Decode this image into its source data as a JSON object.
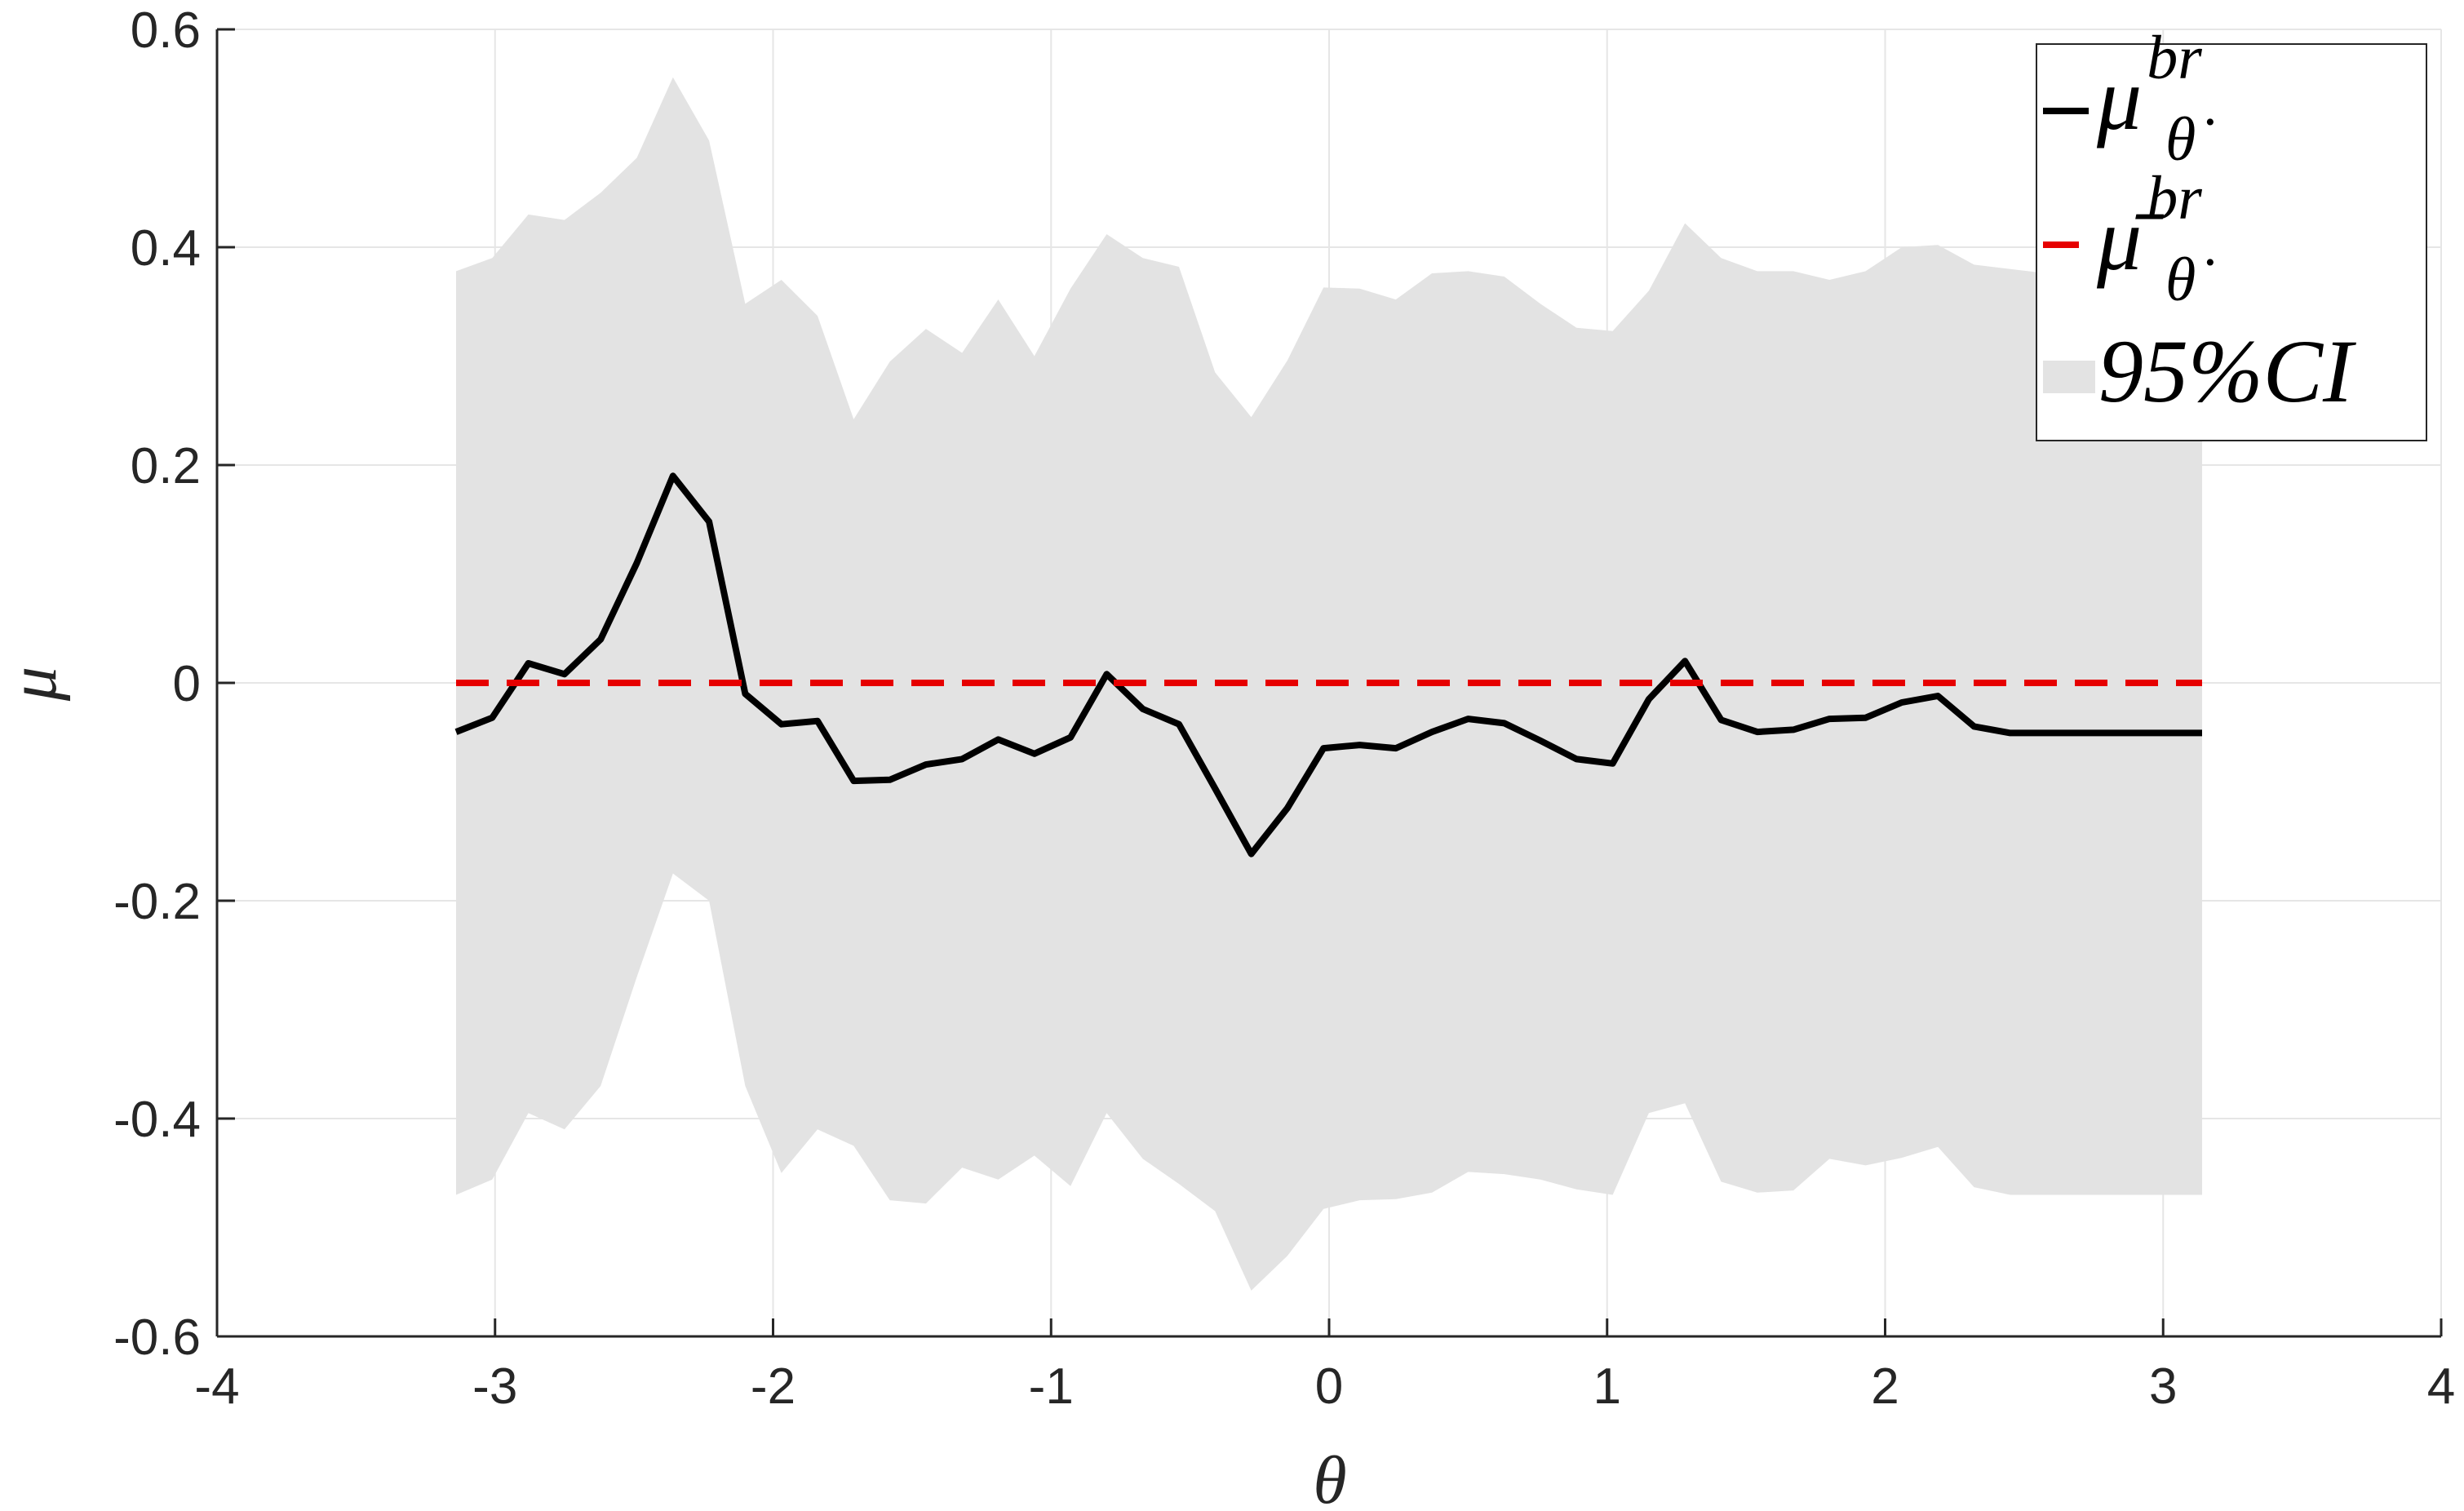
{
  "chart_data": {
    "type": "line",
    "xlabel": "θ",
    "ylabel": "μ",
    "xlim": [
      -4,
      4
    ],
    "ylim": [
      -0.6,
      0.6
    ],
    "x_ticks": [
      -4,
      -3,
      -2,
      -1,
      0,
      1,
      2,
      3,
      4
    ],
    "y_ticks": [
      -0.6,
      -0.4,
      -0.2,
      0,
      0.2,
      0.4,
      0.6
    ],
    "x_tick_labels": [
      "-4",
      "-3",
      "-2",
      "-1",
      "0",
      "1",
      "2",
      "3",
      "4"
    ],
    "y_tick_labels": [
      "-0.6",
      "-0.4",
      "-0.2",
      "0",
      "0.2",
      "0.4",
      "0.6"
    ],
    "grid": true,
    "legend_position": "top-right",
    "colors": {
      "mean_line": "#000000",
      "reference_line": "#e60000",
      "ci_band": "#e3e3e3",
      "grid": "#e6e6e6",
      "axis": "#262626"
    },
    "x": [
      -3.14,
      -3.01,
      -2.88,
      -2.75,
      -2.62,
      -2.49,
      -2.36,
      -2.23,
      -2.1,
      -1.97,
      -1.84,
      -1.71,
      -1.58,
      -1.45,
      -1.32,
      -1.19,
      -1.06,
      -0.93,
      -0.8,
      -0.67,
      -0.54,
      -0.41,
      -0.28,
      -0.15,
      -0.02,
      0.11,
      0.24,
      0.37,
      0.5,
      0.63,
      0.76,
      0.89,
      1.02,
      1.15,
      1.28,
      1.41,
      1.54,
      1.67,
      1.8,
      1.93,
      2.06,
      2.19,
      2.32,
      2.45,
      2.58,
      2.71,
      2.84,
      2.97,
      3.14
    ],
    "series": [
      {
        "name": "μ_θ̇^br",
        "role": "line",
        "values": [
          -0.045,
          -0.032,
          0.018,
          0.008,
          0.04,
          0.11,
          0.19,
          0.148,
          -0.01,
          -0.038,
          -0.035,
          -0.09,
          -0.089,
          -0.075,
          -0.07,
          -0.052,
          -0.065,
          -0.05,
          0.008,
          -0.024,
          -0.038,
          -0.097,
          -0.157,
          -0.115,
          -0.06,
          -0.057,
          -0.06,
          -0.045,
          -0.033,
          -0.037,
          -0.053,
          -0.07,
          -0.074,
          -0.015,
          0.02,
          -0.034,
          -0.045,
          -0.043,
          -0.033,
          -0.032,
          -0.018,
          -0.012,
          -0.04,
          -0.046,
          -0.046,
          -0.046,
          -0.046,
          -0.046,
          -0.046
        ]
      },
      {
        "name": "μ̄_θ̇^br",
        "role": "dashed",
        "values": [
          0,
          0,
          0,
          0,
          0,
          0,
          0,
          0,
          0,
          0,
          0,
          0,
          0,
          0,
          0,
          0,
          0,
          0,
          0,
          0,
          0,
          0,
          0,
          0,
          0,
          0,
          0,
          0,
          0,
          0,
          0,
          0,
          0,
          0,
          0,
          0,
          0,
          0,
          0,
          0,
          0,
          0,
          0,
          0,
          0,
          0,
          0,
          0,
          0
        ]
      },
      {
        "name": "95%CI",
        "role": "band",
        "upper": [
          0.378,
          0.39,
          0.43,
          0.425,
          0.45,
          0.482,
          0.556,
          0.498,
          0.348,
          0.37,
          0.337,
          0.242,
          0.295,
          0.325,
          0.303,
          0.352,
          0.3,
          0.362,
          0.412,
          0.39,
          0.382,
          0.285,
          0.244,
          0.296,
          0.363,
          0.362,
          0.352,
          0.376,
          0.378,
          0.373,
          0.348,
          0.326,
          0.323,
          0.36,
          0.422,
          0.39,
          0.378,
          0.378,
          0.37,
          0.378,
          0.4,
          0.402,
          0.384,
          0.38,
          0.376,
          0.376,
          0.376,
          0.376,
          0.376
        ],
        "lower": [
          -0.47,
          -0.456,
          -0.395,
          -0.41,
          -0.37,
          -0.27,
          -0.175,
          -0.2,
          -0.37,
          -0.45,
          -0.41,
          -0.425,
          -0.475,
          -0.478,
          -0.445,
          -0.456,
          -0.434,
          -0.462,
          -0.395,
          -0.437,
          -0.46,
          -0.485,
          -0.558,
          -0.526,
          -0.483,
          -0.475,
          -0.474,
          -0.468,
          -0.449,
          -0.451,
          -0.456,
          -0.465,
          -0.47,
          -0.395,
          -0.386,
          -0.458,
          -0.468,
          -0.466,
          -0.437,
          -0.443,
          -0.436,
          -0.426,
          -0.463,
          -0.47,
          -0.47,
          -0.47,
          -0.47,
          -0.47,
          -0.47
        ]
      }
    ],
    "legend": {
      "entries": [
        {
          "symbol": "μ",
          "superscript": "br",
          "subscript": "θ̇"
        },
        {
          "symbol": "μ̄",
          "superscript": "br",
          "subscript": "θ̇"
        },
        {
          "text": "95%CI"
        }
      ]
    }
  }
}
